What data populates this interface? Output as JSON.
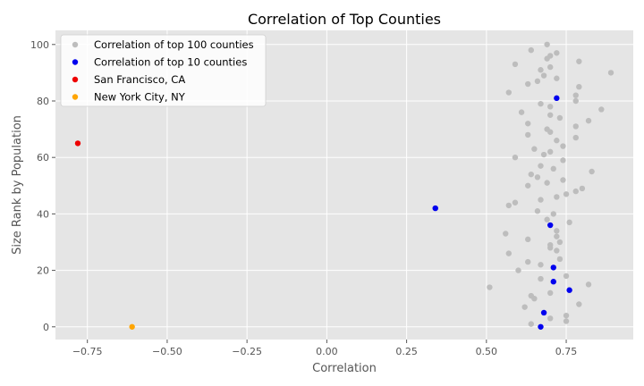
{
  "chart_data": {
    "type": "scatter",
    "title": "Correlation of Top Counties",
    "xlabel": "Correlation",
    "ylabel": "Size Rank by Population",
    "xlim": [
      -0.85,
      0.96
    ],
    "ylim": [
      -4.5,
      105
    ],
    "x_ticks": [
      -0.75,
      -0.5,
      -0.25,
      0.0,
      0.25,
      0.5,
      0.75
    ],
    "x_tick_labels": [
      "−0.75",
      "−0.50",
      "−0.25",
      "0.00",
      "0.25",
      "0.50",
      "0.75"
    ],
    "y_ticks": [
      0,
      20,
      40,
      60,
      80,
      100
    ],
    "y_tick_labels": [
      "0",
      "20",
      "40",
      "60",
      "80",
      "100"
    ],
    "grid": true,
    "legend_position": "top-left",
    "series": [
      {
        "name": "Correlation of top 100 counties",
        "color": "#bdbdbd",
        "points": [
          [
            0.69,
            100
          ],
          [
            0.64,
            98
          ],
          [
            0.7,
            96
          ],
          [
            0.69,
            95
          ],
          [
            0.72,
            97
          ],
          [
            0.59,
            93
          ],
          [
            0.7,
            92
          ],
          [
            0.67,
            91
          ],
          [
            0.79,
            94
          ],
          [
            0.89,
            90
          ],
          [
            0.68,
            89
          ],
          [
            0.66,
            87
          ],
          [
            0.63,
            86
          ],
          [
            0.72,
            88
          ],
          [
            0.79,
            85
          ],
          [
            0.57,
            83
          ],
          [
            0.78,
            82
          ],
          [
            0.78,
            80
          ],
          [
            0.67,
            79
          ],
          [
            0.7,
            78
          ],
          [
            0.86,
            77
          ],
          [
            0.61,
            76
          ],
          [
            0.7,
            75
          ],
          [
            0.73,
            74
          ],
          [
            0.82,
            73
          ],
          [
            0.63,
            72
          ],
          [
            0.78,
            71
          ],
          [
            0.69,
            70
          ],
          [
            0.7,
            69
          ],
          [
            0.63,
            68
          ],
          [
            0.78,
            67
          ],
          [
            0.72,
            66
          ],
          [
            0.74,
            64
          ],
          [
            0.65,
            63
          ],
          [
            0.7,
            62
          ],
          [
            0.68,
            61
          ],
          [
            0.59,
            60
          ],
          [
            0.74,
            59
          ],
          [
            0.67,
            57
          ],
          [
            0.71,
            56
          ],
          [
            0.83,
            55
          ],
          [
            0.64,
            54
          ],
          [
            0.66,
            53
          ],
          [
            0.74,
            52
          ],
          [
            0.69,
            51
          ],
          [
            0.63,
            50
          ],
          [
            0.8,
            49
          ],
          [
            0.78,
            48
          ],
          [
            0.75,
            47
          ],
          [
            0.72,
            46
          ],
          [
            0.67,
            45
          ],
          [
            0.59,
            44
          ],
          [
            0.57,
            43
          ],
          [
            0.66,
            41
          ],
          [
            0.71,
            40
          ],
          [
            0.69,
            38
          ],
          [
            0.76,
            37
          ],
          [
            0.72,
            34
          ],
          [
            0.56,
            33
          ],
          [
            0.72,
            32
          ],
          [
            0.63,
            31
          ],
          [
            0.73,
            30
          ],
          [
            0.7,
            29
          ],
          [
            0.7,
            28
          ],
          [
            0.72,
            27
          ],
          [
            0.57,
            26
          ],
          [
            0.73,
            24
          ],
          [
            0.63,
            23
          ],
          [
            0.67,
            22
          ],
          [
            0.6,
            20
          ],
          [
            0.75,
            18
          ],
          [
            0.67,
            17
          ],
          [
            0.82,
            15
          ],
          [
            0.51,
            14
          ],
          [
            0.7,
            12
          ],
          [
            0.64,
            11
          ],
          [
            0.65,
            10
          ],
          [
            0.79,
            8
          ],
          [
            0.62,
            7
          ],
          [
            0.75,
            4
          ],
          [
            0.7,
            3
          ],
          [
            0.75,
            2
          ],
          [
            0.64,
            1
          ]
        ]
      },
      {
        "name": "Correlation of top 10 counties",
        "color": "#0000ee",
        "points": [
          [
            0.67,
            0
          ],
          [
            0.68,
            5
          ],
          [
            0.76,
            13
          ],
          [
            0.71,
            16
          ],
          [
            0.71,
            21
          ],
          [
            0.7,
            36
          ],
          [
            0.34,
            42
          ],
          [
            0.72,
            81
          ]
        ]
      },
      {
        "name": "San Francisco, CA",
        "color": "#ee0000",
        "points": [
          [
            -0.78,
            65
          ]
        ]
      },
      {
        "name": "New York City, NY",
        "color": "#ffa500",
        "points": [
          [
            -0.61,
            0
          ]
        ]
      }
    ]
  }
}
